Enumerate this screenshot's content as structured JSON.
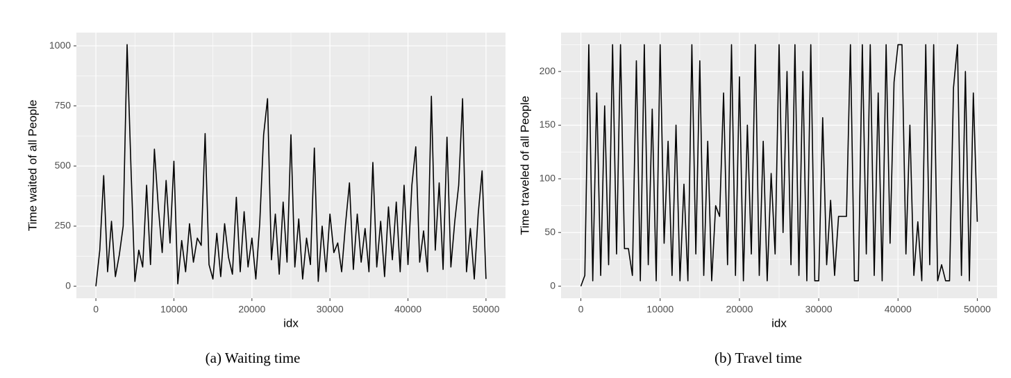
{
  "chart_data": [
    {
      "type": "line",
      "xlabel": "idx",
      "ylabel": "Time waited of all People",
      "caption": "(a) Waiting time",
      "color": "#000000",
      "grid": true,
      "xlim": [
        -2500,
        52500
      ],
      "xticks": [
        0,
        10000,
        20000,
        30000,
        40000,
        50000
      ],
      "xminor": [
        5000,
        15000,
        25000,
        35000,
        45000
      ],
      "ylim": [
        -50,
        1055
      ],
      "yticks": [
        0,
        250,
        500,
        750,
        1000
      ],
      "yminor": [
        125,
        375,
        625,
        875
      ],
      "x": [
        0,
        500,
        1000,
        1500,
        2000,
        2500,
        3000,
        3500,
        4000,
        4500,
        5000,
        5500,
        6000,
        6500,
        7000,
        7500,
        8000,
        8500,
        9000,
        9500,
        10000,
        10500,
        11000,
        11500,
        12000,
        12500,
        13000,
        13500,
        14000,
        14500,
        15000,
        15500,
        16000,
        16500,
        17000,
        17500,
        18000,
        18500,
        19000,
        19500,
        20000,
        20500,
        21000,
        21500,
        22000,
        22500,
        23000,
        23500,
        24000,
        24500,
        25000,
        25500,
        26000,
        26500,
        27000,
        27500,
        28000,
        28500,
        29000,
        29500,
        30000,
        30500,
        31000,
        31500,
        32000,
        32500,
        33000,
        33500,
        34000,
        34500,
        35000,
        35500,
        36000,
        36500,
        37000,
        37500,
        38000,
        38500,
        39000,
        39500,
        40000,
        40500,
        41000,
        41500,
        42000,
        42500,
        43000,
        43500,
        44000,
        44500,
        45000,
        45500,
        46000,
        46500,
        47000,
        47500,
        48000,
        48500,
        49000,
        49500,
        50000
      ],
      "values": [
        0,
        150,
        460,
        60,
        270,
        40,
        130,
        250,
        1005,
        490,
        20,
        150,
        80,
        420,
        90,
        570,
        330,
        140,
        440,
        180,
        520,
        10,
        190,
        60,
        260,
        100,
        200,
        170,
        635,
        90,
        30,
        220,
        40,
        260,
        120,
        50,
        370,
        60,
        310,
        80,
        200,
        30,
        260,
        630,
        780,
        110,
        300,
        50,
        350,
        100,
        630,
        80,
        280,
        30,
        200,
        90,
        575,
        20,
        250,
        60,
        300,
        140,
        180,
        60,
        260,
        430,
        70,
        300,
        100,
        240,
        60,
        515,
        80,
        270,
        40,
        330,
        110,
        350,
        60,
        420,
        90,
        420,
        580,
        100,
        230,
        60,
        790,
        150,
        430,
        70,
        620,
        80,
        270,
        420,
        780,
        60,
        240,
        30,
        300,
        480,
        30
      ]
    },
    {
      "type": "line",
      "xlabel": "idx",
      "ylabel": "Time traveled of all People",
      "caption": "(b) Travel time",
      "color": "#000000",
      "grid": true,
      "xlim": [
        -2500,
        52500
      ],
      "xticks": [
        0,
        10000,
        20000,
        30000,
        40000,
        50000
      ],
      "xminor": [
        5000,
        15000,
        25000,
        35000,
        45000
      ],
      "ylim": [
        -11.25,
        236.25
      ],
      "yticks": [
        0,
        50,
        100,
        150,
        200
      ],
      "yminor": [
        25,
        75,
        125,
        175,
        225
      ],
      "x": [
        0,
        500,
        1000,
        1500,
        2000,
        2500,
        3000,
        3500,
        4000,
        4500,
        5000,
        5500,
        6000,
        6500,
        7000,
        7500,
        8000,
        8500,
        9000,
        9500,
        10000,
        10500,
        11000,
        11500,
        12000,
        12500,
        13000,
        13500,
        14000,
        14500,
        15000,
        15500,
        16000,
        16500,
        17000,
        17500,
        18000,
        18500,
        19000,
        19500,
        20000,
        20500,
        21000,
        21500,
        22000,
        22500,
        23000,
        23500,
        24000,
        24500,
        25000,
        25500,
        26000,
        26500,
        27000,
        27500,
        28000,
        28500,
        29000,
        29500,
        30000,
        30500,
        31000,
        31500,
        32000,
        32500,
        33000,
        33500,
        34000,
        34500,
        35000,
        35500,
        36000,
        36500,
        37000,
        37500,
        38000,
        38500,
        39000,
        39500,
        40000,
        40500,
        41000,
        41500,
        42000,
        42500,
        43000,
        43500,
        44000,
        44500,
        45000,
        45500,
        46000,
        46500,
        47000,
        47500,
        48000,
        48500,
        49000,
        49500,
        50000
      ],
      "values": [
        0,
        10,
        225,
        5,
        180,
        10,
        168,
        20,
        225,
        30,
        225,
        35,
        35,
        10,
        210,
        5,
        225,
        20,
        165,
        5,
        225,
        40,
        135,
        10,
        150,
        5,
        95,
        5,
        225,
        30,
        210,
        10,
        135,
        5,
        75,
        65,
        180,
        20,
        225,
        10,
        195,
        5,
        150,
        30,
        225,
        10,
        135,
        5,
        105,
        30,
        225,
        50,
        200,
        20,
        225,
        10,
        200,
        5,
        225,
        5,
        5,
        157,
        20,
        80,
        10,
        65,
        65,
        65,
        225,
        5,
        5,
        225,
        30,
        225,
        10,
        180,
        5,
        225,
        40,
        190,
        225,
        225,
        30,
        150,
        10,
        60,
        5,
        225,
        20,
        225,
        5,
        20,
        5,
        5,
        185,
        225,
        10,
        200,
        5,
        180,
        60
      ]
    }
  ]
}
